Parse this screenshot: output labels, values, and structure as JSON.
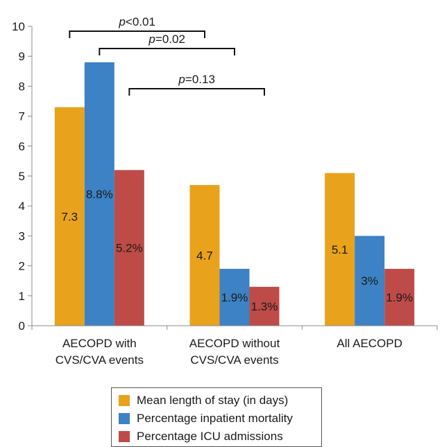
{
  "chart_data": {
    "type": "bar",
    "categories": [
      [
        "AECOPD with",
        "CVS/CVA events"
      ],
      [
        "AECOPD without",
        "CVS/CVA events"
      ],
      [
        "All AECOPD"
      ]
    ],
    "series": [
      {
        "name": "Mean length of stay (in days)",
        "color": "#E8A21C",
        "values": [
          7.3,
          4.7,
          5.1
        ],
        "labels": [
          "7.3",
          "4.7",
          "5.1"
        ]
      },
      {
        "name": "Percentage inpatient mortality",
        "color": "#3C82C4",
        "values": [
          8.8,
          1.9,
          3.0
        ],
        "labels": [
          "8.8%",
          "1.9%",
          "3%"
        ]
      },
      {
        "name": "Percentage ICU admissions",
        "color": "#BE4B48",
        "values": [
          5.2,
          1.3,
          1.9
        ],
        "labels": [
          "5.2%",
          "1.3%",
          "1.9%"
        ]
      }
    ],
    "ylim": [
      0,
      10
    ],
    "yticks": [
      0,
      1,
      2,
      3,
      4,
      5,
      6,
      7,
      8,
      9,
      10
    ],
    "grid": false,
    "legend_position": "bottom",
    "annotations": [
      {
        "p_label": "p",
        "p_value": "<0.01",
        "from": {
          "category": 0,
          "series": 0
        },
        "to": {
          "category": 1,
          "series": 0
        }
      },
      {
        "p_label": "p",
        "p_value": "=0.02",
        "from": {
          "category": 0,
          "series": 1
        },
        "to": {
          "category": 1,
          "series": 1
        }
      },
      {
        "p_label": "p",
        "p_value": "=0.13",
        "from": {
          "category": 0,
          "series": 2
        },
        "to": {
          "category": 1,
          "series": 2
        }
      }
    ]
  }
}
